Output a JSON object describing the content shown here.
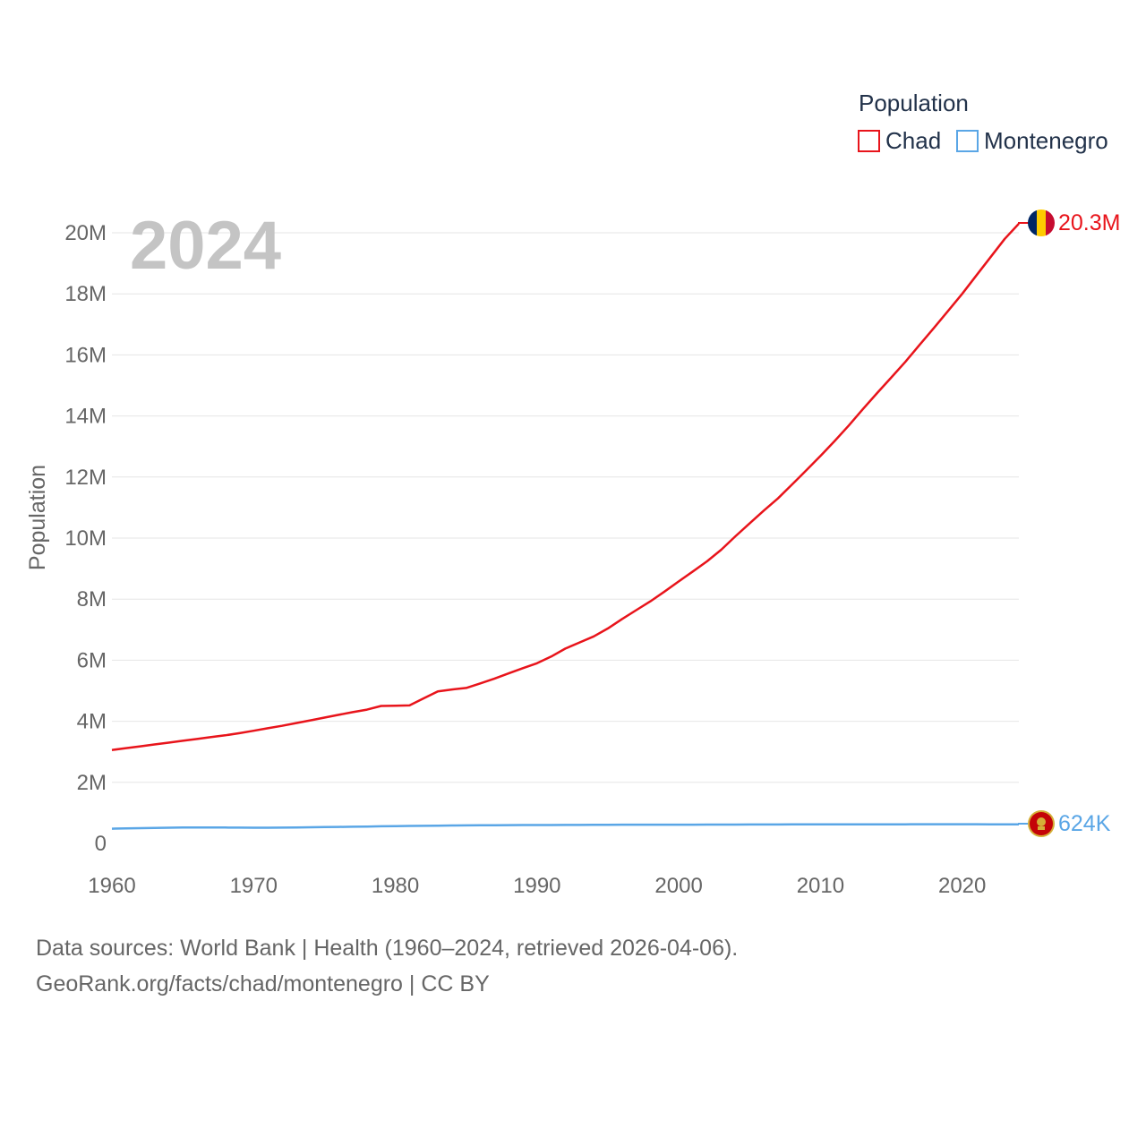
{
  "chart_data": {
    "type": "line",
    "title": "",
    "current_year_label": "2024",
    "xlabel": "",
    "ylabel": "Population",
    "xlim": [
      1960,
      2024
    ],
    "ylim": [
      0,
      20000000
    ],
    "x_ticks": [
      1960,
      1970,
      1980,
      1990,
      2000,
      2010,
      2020
    ],
    "x_tick_labels": [
      "1960",
      "1970",
      "1980",
      "1990",
      "2000",
      "2010",
      "2020"
    ],
    "y_ticks": [
      0,
      2000000,
      4000000,
      6000000,
      8000000,
      10000000,
      12000000,
      14000000,
      16000000,
      18000000,
      20000000
    ],
    "y_tick_labels": [
      "0",
      "2M",
      "4M",
      "6M",
      "8M",
      "10M",
      "12M",
      "14M",
      "16M",
      "18M",
      "20M"
    ],
    "grid": true,
    "legend": {
      "title": "Population",
      "placement": "top-right",
      "entries": [
        "Chad",
        "Montenegro"
      ]
    },
    "x": [
      1960,
      1961,
      1962,
      1963,
      1964,
      1965,
      1966,
      1967,
      1968,
      1969,
      1970,
      1971,
      1972,
      1973,
      1974,
      1975,
      1976,
      1977,
      1978,
      1979,
      1980,
      1981,
      1982,
      1983,
      1984,
      1985,
      1986,
      1987,
      1988,
      1989,
      1990,
      1991,
      1992,
      1993,
      1994,
      1995,
      1996,
      1997,
      1998,
      1999,
      2000,
      2001,
      2002,
      2003,
      2004,
      2005,
      2006,
      2007,
      2008,
      2009,
      2010,
      2011,
      2012,
      2013,
      2014,
      2015,
      2016,
      2017,
      2018,
      2019,
      2020,
      2021,
      2022,
      2023,
      2024
    ],
    "series": [
      {
        "name": "Chad",
        "color": "#e8141b",
        "end_label": "20.3M",
        "flag_icon": "chad-flag-icon",
        "values": [
          3060000,
          3120000,
          3180000,
          3240000,
          3300000,
          3360000,
          3420000,
          3480000,
          3540000,
          3610000,
          3690000,
          3770000,
          3850000,
          3940000,
          4030000,
          4120000,
          4210000,
          4300000,
          4380000,
          4500000,
          4510000,
          4520000,
          4750000,
          4980000,
          5040000,
          5090000,
          5240000,
          5400000,
          5570000,
          5740000,
          5900000,
          6120000,
          6380000,
          6580000,
          6780000,
          7040000,
          7350000,
          7640000,
          7930000,
          8250000,
          8580000,
          8910000,
          9240000,
          9620000,
          10060000,
          10480000,
          10900000,
          11300000,
          11760000,
          12220000,
          12690000,
          13180000,
          13690000,
          14230000,
          14750000,
          15260000,
          15780000,
          16330000,
          16880000,
          17440000,
          18000000,
          18600000,
          19200000,
          19800000,
          20300000
        ]
      },
      {
        "name": "Montenegro",
        "color": "#5aa6e6",
        "end_label": "624K",
        "flag_icon": "montenegro-flag-icon",
        "values": [
          481000,
          490000,
          499000,
          507000,
          513000,
          518000,
          520000,
          521000,
          519000,
          515000,
          512000,
          512000,
          515000,
          520000,
          527000,
          533000,
          539000,
          545000,
          552000,
          559000,
          565000,
          571000,
          576000,
          581000,
          586000,
          590000,
          593000,
          596000,
          598000,
          600000,
          601000,
          602000,
          603000,
          604000,
          606000,
          610000,
          612000,
          613000,
          613000,
          613000,
          613000,
          614000,
          615000,
          616000,
          617000,
          618000,
          619000,
          620000,
          621000,
          622000,
          624000,
          624000,
          625000,
          625000,
          626000,
          626000,
          626000,
          627000,
          627000,
          628000,
          628000,
          627000,
          626000,
          625000,
          624000
        ]
      }
    ]
  },
  "footer": {
    "line1": "Data sources: World Bank | Health (1960–2024, retrieved 2026-04-06).",
    "line2": "GeoRank.org/facts/chad/montenegro | CC BY"
  }
}
